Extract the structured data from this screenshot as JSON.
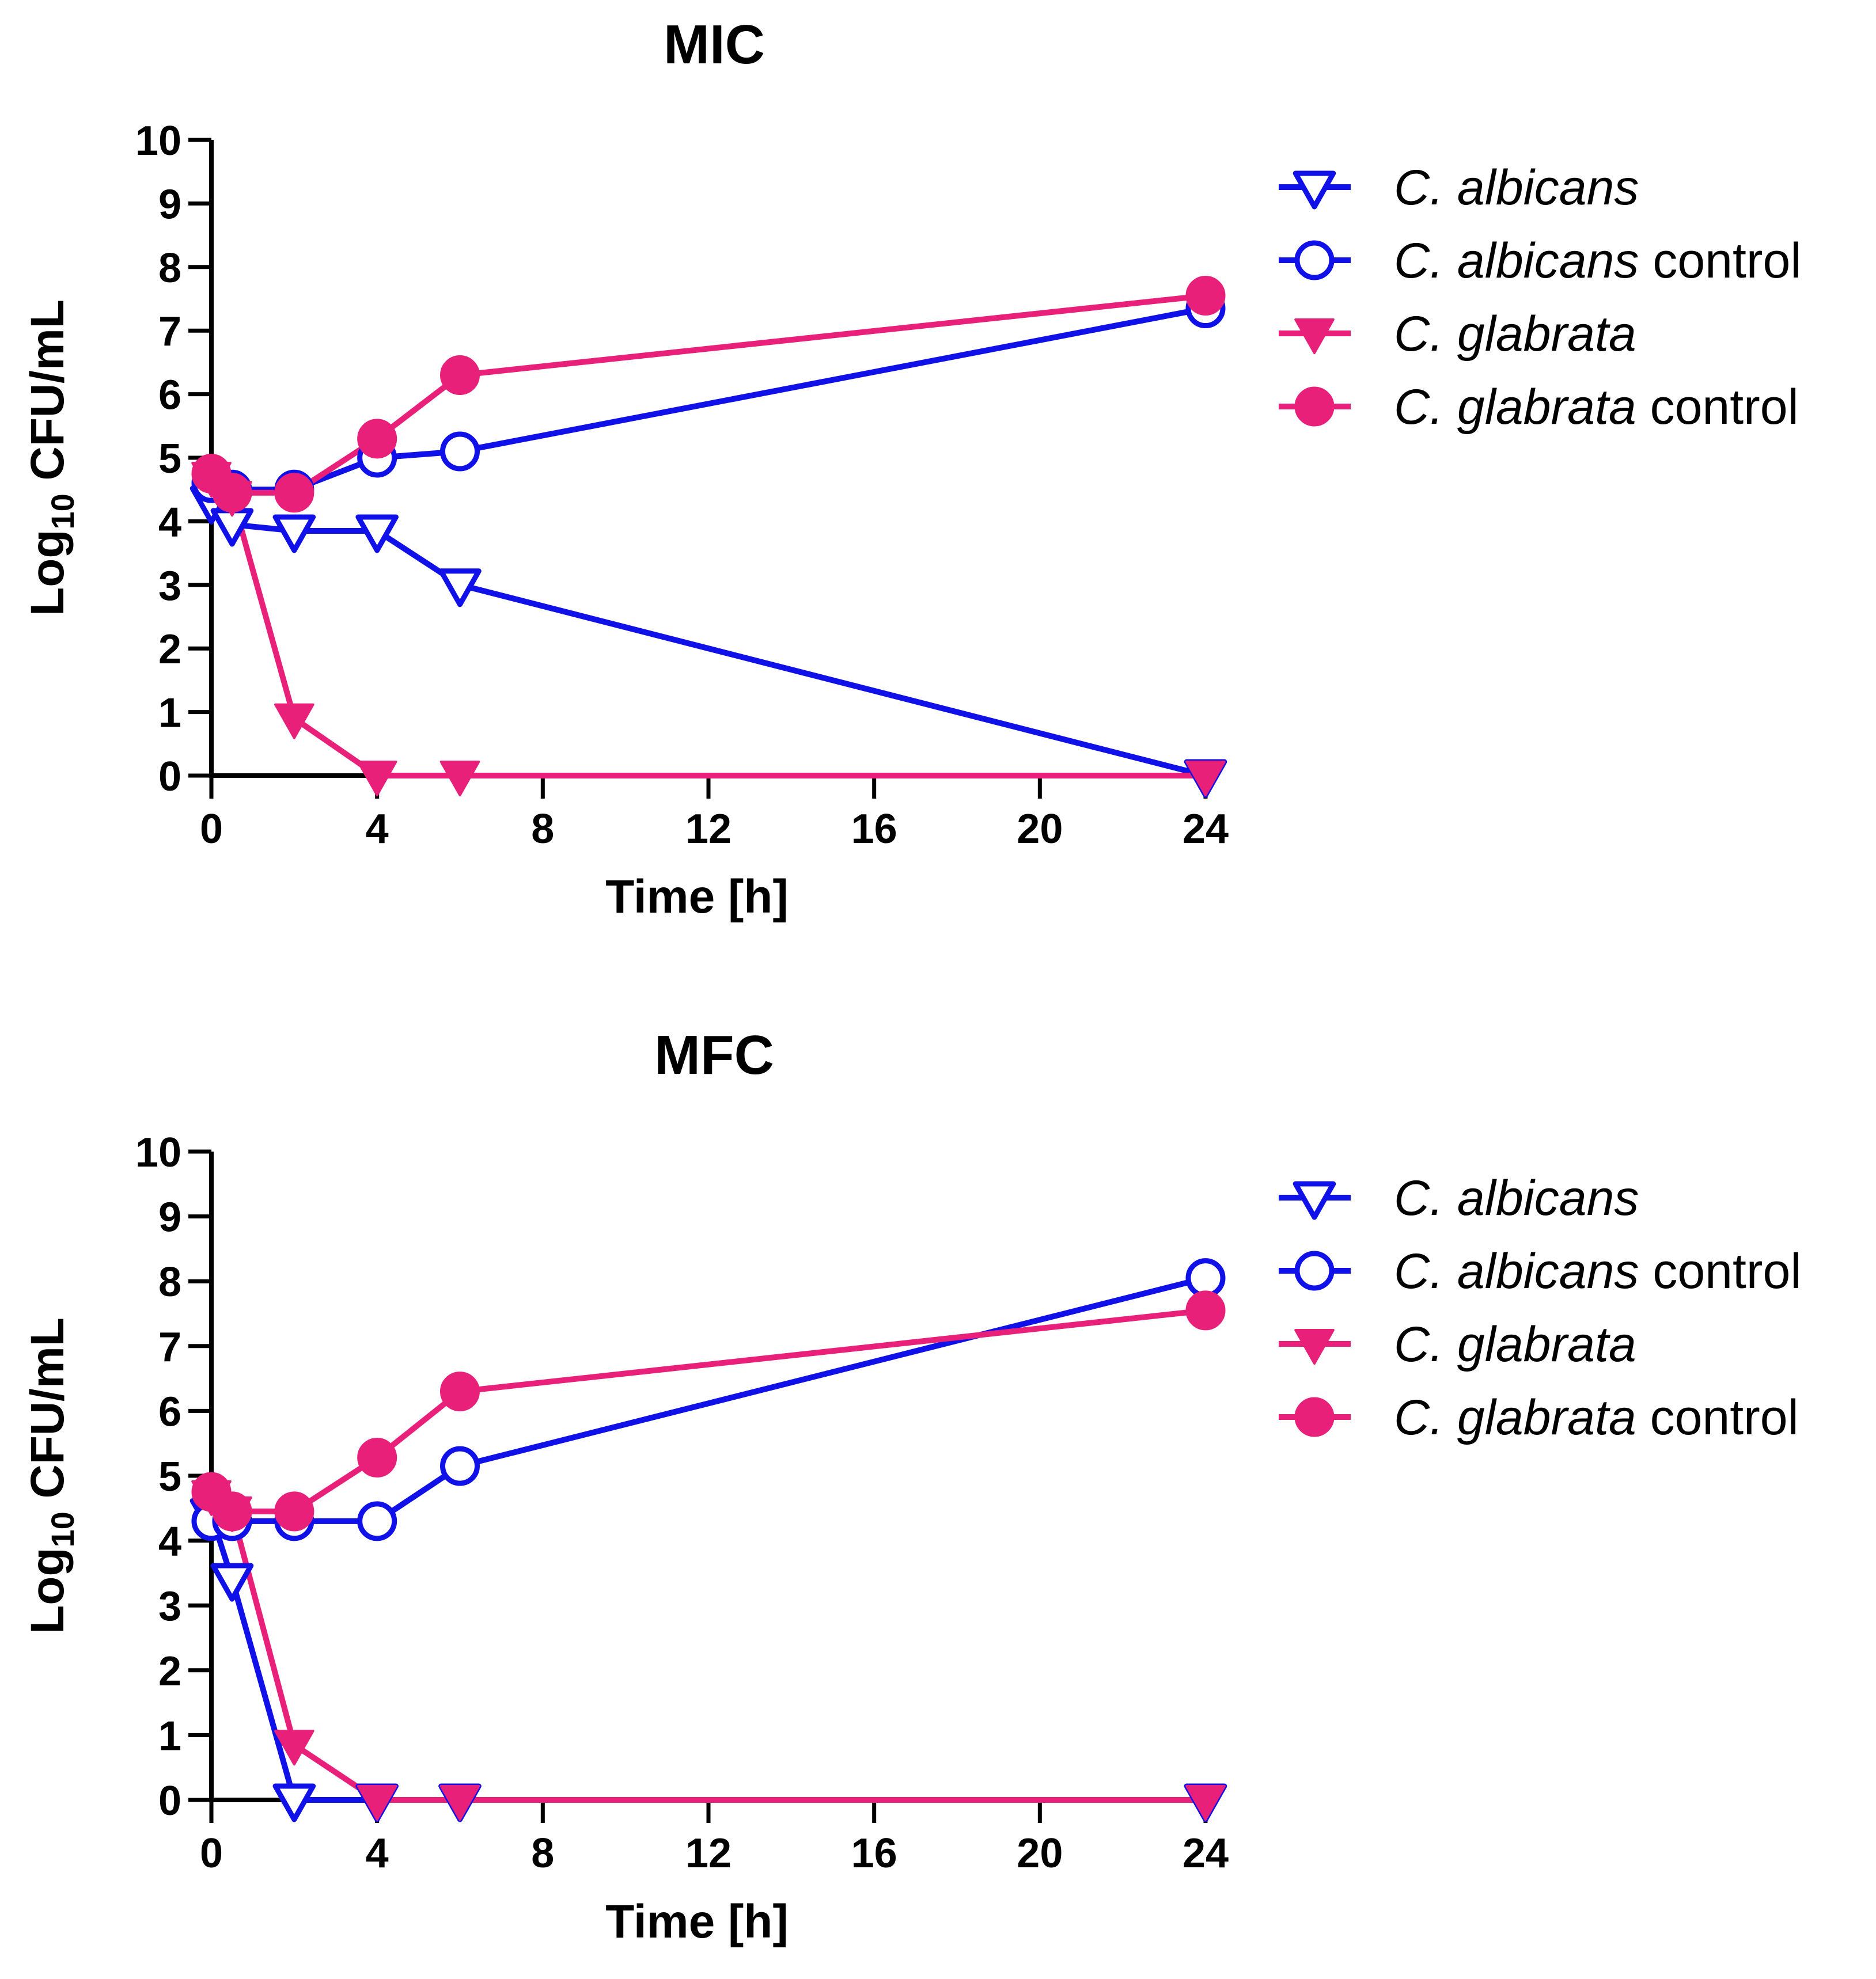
{
  "chart_data": [
    {
      "type": "line",
      "title": "MIC",
      "xlabel": "Time [h]",
      "ylabel_main": "Log",
      "ylabel_sub": "10",
      "ylabel_rest": " CFU/mL",
      "xlim": [
        0,
        24
      ],
      "ylim": [
        0,
        10
      ],
      "xticks": [
        "0",
        "4",
        "8",
        "12",
        "16",
        "20",
        "24"
      ],
      "yticks": [
        "0",
        "1",
        "2",
        "3",
        "4",
        "5",
        "6",
        "7",
        "8",
        "9",
        "10"
      ],
      "x": [
        0,
        0.5,
        2,
        4,
        6,
        24
      ],
      "legend_position": "right",
      "series": [
        {
          "name": "C. albicans",
          "name_italic": "C. albicans",
          "name_rest": "",
          "color": "#1010e8",
          "marker": "triangle-down-open",
          "values": [
            4.3,
            3.95,
            3.85,
            3.85,
            3.0,
            0
          ]
        },
        {
          "name": "C. albicans control",
          "name_italic": "C. albicans",
          "name_rest": " control",
          "color": "#1010e8",
          "marker": "circle-open",
          "values": [
            4.6,
            4.5,
            4.5,
            5.0,
            5.1,
            7.35
          ]
        },
        {
          "name": "C. glabrata",
          "name_italic": "C. glabrata",
          "name_rest": "",
          "color": "#e8207a",
          "marker": "triangle-down-filled",
          "values": [
            4.7,
            4.4,
            0.9,
            0,
            0,
            0
          ]
        },
        {
          "name": "C. glabrata control",
          "name_italic": "C. glabrata",
          "name_rest": " control",
          "color": "#e8207a",
          "marker": "circle-filled",
          "values": [
            4.75,
            4.45,
            4.45,
            5.3,
            6.3,
            7.55
          ]
        }
      ]
    },
    {
      "type": "line",
      "title": "MFC",
      "xlabel": "Time [h]",
      "ylabel_main": "Log",
      "ylabel_sub": "10",
      "ylabel_rest": " CFU/mL",
      "xlim": [
        0,
        24
      ],
      "ylim": [
        0,
        10
      ],
      "xticks": [
        "0",
        "4",
        "8",
        "12",
        "16",
        "20",
        "24"
      ],
      "yticks": [
        "0",
        "1",
        "2",
        "3",
        "4",
        "5",
        "6",
        "7",
        "8",
        "9",
        "10"
      ],
      "x": [
        0,
        0.5,
        2,
        4,
        6,
        24
      ],
      "legend_position": "right",
      "series": [
        {
          "name": "C. albicans",
          "name_italic": "C. albicans",
          "name_rest": "",
          "color": "#1010e8",
          "marker": "triangle-down-open",
          "values": [
            4.4,
            3.4,
            0,
            0,
            0,
            0
          ]
        },
        {
          "name": "C. albicans control",
          "name_italic": "C. albicans",
          "name_rest": " control",
          "color": "#1010e8",
          "marker": "circle-open",
          "values": [
            4.3,
            4.3,
            4.3,
            4.3,
            5.15,
            8.05
          ]
        },
        {
          "name": "C. glabrata",
          "name_italic": "C. glabrata",
          "name_rest": "",
          "color": "#e8207a",
          "marker": "triangle-down-filled",
          "values": [
            4.7,
            4.45,
            0.85,
            0,
            0,
            0
          ]
        },
        {
          "name": "C. glabrata control",
          "name_italic": "C. glabrata",
          "name_rest": " control",
          "color": "#e8207a",
          "marker": "circle-filled",
          "values": [
            4.75,
            4.45,
            4.45,
            5.28,
            6.3,
            7.55
          ]
        }
      ]
    }
  ]
}
